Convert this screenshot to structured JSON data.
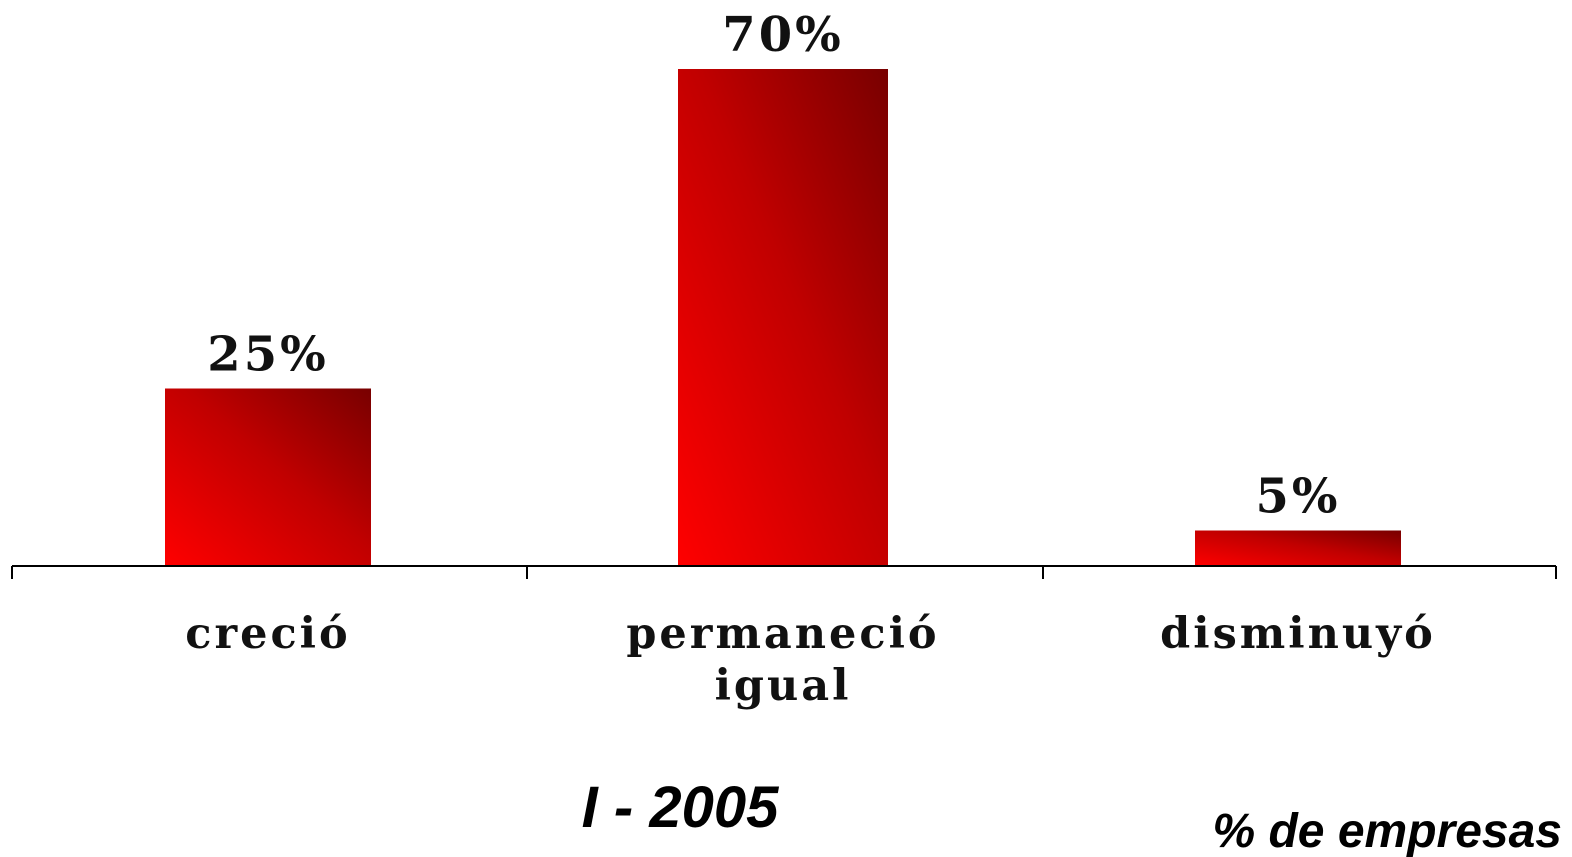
{
  "chart_data": {
    "type": "bar",
    "categories": [
      [
        "creció"
      ],
      [
        "permaneció",
        "igual"
      ],
      [
        "disminuyó"
      ]
    ],
    "values": [
      25,
      70,
      5
    ],
    "data_labels": [
      "25%",
      "70%",
      "5%"
    ],
    "ylim": [
      0,
      70
    ],
    "grid": false,
    "legend": false,
    "period": "I - 2005",
    "unit_note": "% de empresas",
    "colors": {
      "bar_light": "#ff0000",
      "bar_dark": "#780000",
      "axis": "#000000"
    }
  }
}
